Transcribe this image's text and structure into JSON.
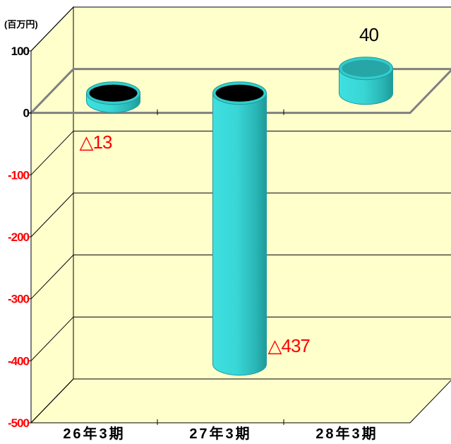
{
  "chart_data": {
    "type": "bar",
    "style": "3d-cylinder",
    "unit_label": "(百万円)",
    "categories": [
      "26年3期",
      "27年3期",
      "28年3期"
    ],
    "values": [
      -13,
      -437,
      40
    ],
    "data_labels": [
      "△13",
      "△437",
      "40"
    ],
    "ylim": [
      -500,
      100
    ],
    "yticks": [
      100,
      0,
      -100,
      -200,
      -300,
      -400,
      -500
    ],
    "ytick_labels": [
      "100",
      "0",
      "-100",
      "-200",
      "-300",
      "-400",
      "-500"
    ],
    "grid": true,
    "legend": "none"
  },
  "colors": {
    "background": "#ffffff",
    "wall": "#ffffcc",
    "floor": "#ffffcc",
    "grid": "#000000",
    "bar": "#33cccc",
    "bar_top": "#26a6a6",
    "negative_label": "#ff0000",
    "positive_label": "#000000",
    "zero_plane": "#808080"
  }
}
